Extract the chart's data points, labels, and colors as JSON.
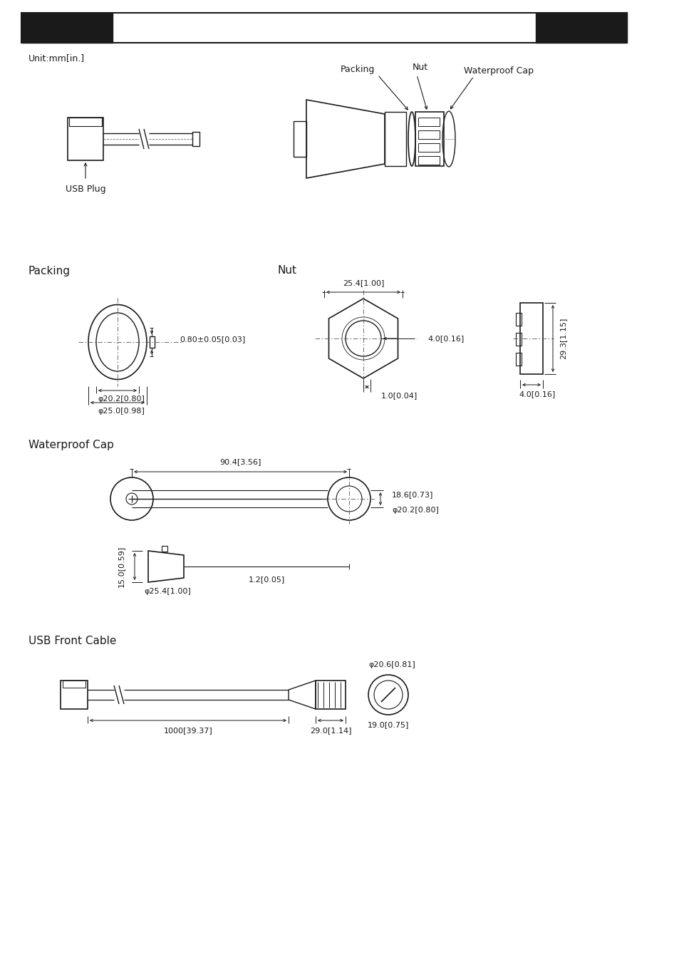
{
  "bg_color": "#ffffff",
  "line_color": "#1a1a1a",
  "header_bar_color": "#1a1a1a",
  "text_color": "#1a1a1a",
  "unit_text": "Unit:mm[in.]",
  "section_labels": {
    "packing": "Packing",
    "nut": "Nut",
    "waterproof_cap": "Waterproof Cap",
    "usb_front_cable": "USB Front Cable"
  },
  "packing_dims": {
    "od": "φ25.0[0.98]",
    "id": "φ20.2[0.80]",
    "thickness": "0.80±0.05[0.03]"
  },
  "nut_dims": {
    "width": "25.4[1.00]",
    "inner_r": "4.0[0.16]",
    "depth": "1.0[0.04]",
    "side_h": "29.3[1.15]",
    "side_w": "4.0[0.16]"
  },
  "waterproof_dims": {
    "length": "90.4[3.56]",
    "height": "18.6[0.73]",
    "od": "φ20.2[0.80]",
    "cap_h": "15.0[0.59]",
    "cap_od": "φ25.4[1.00]",
    "thickness": "1.2[0.05]"
  },
  "usb_dims": {
    "cable_len": "1000[39.37]",
    "connector_len": "29.0[1.14]",
    "circle_od": "φ20.6[0.81]",
    "circle_id": "19.0[0.75]"
  }
}
